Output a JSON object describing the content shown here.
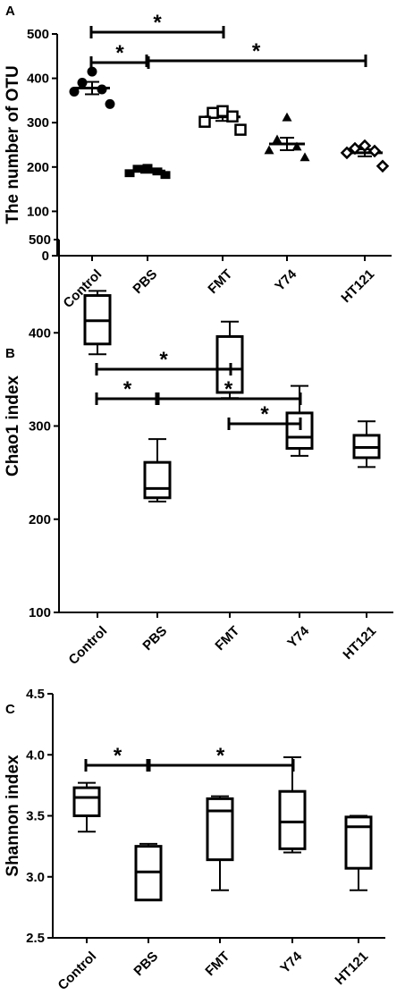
{
  "chart_data": [
    {
      "panel": "A",
      "type": "scatter",
      "ylabel": "The number of OTU",
      "xlabel": "",
      "categories": [
        "Control",
        "PBS",
        "FMT",
        "Y74",
        "HT121"
      ],
      "ylim": [
        0,
        500
      ],
      "yticks": [
        0,
        100,
        200,
        300,
        400,
        500
      ],
      "series": [
        {
          "markers": "filled-circle",
          "values": [
            415,
            390,
            375,
            370,
            342
          ],
          "mean": 378,
          "sem": 14
        },
        {
          "markers": "filled-square",
          "values": [
            198,
            196,
            190,
            186,
            182
          ],
          "mean": 191,
          "sem": 4
        },
        {
          "markers": "open-square",
          "values": [
            326,
            322,
            314,
            302,
            284
          ],
          "mean": 313,
          "sem": 9
        },
        {
          "markers": "filled-triangle",
          "values": [
            312,
            262,
            246,
            238,
            222
          ],
          "mean": 252,
          "sem": 14
        },
        {
          "markers": "open-diamond",
          "values": [
            248,
            242,
            236,
            232,
            202
          ],
          "mean": 232,
          "sem": 8
        }
      ],
      "significance": [
        {
          "from": "Control",
          "to": "FMT",
          "label": "*"
        },
        {
          "from": "Control",
          "to": "PBS",
          "label": "*"
        },
        {
          "from": "PBS",
          "to": "HT121",
          "label": "*"
        }
      ]
    },
    {
      "panel": "B",
      "type": "box",
      "ylabel": "Chao1 index",
      "xlabel": "",
      "categories": [
        "Control",
        "PBS",
        "FMT",
        "Y74",
        "HT121"
      ],
      "ylim": [
        100,
        500
      ],
      "yticks": [
        100,
        200,
        300,
        400,
        500
      ],
      "boxes": [
        {
          "min": 377,
          "q1": 388,
          "median": 413,
          "q3": 440,
          "max": 445
        },
        {
          "min": 219,
          "q1": 223,
          "median": 233,
          "q3": 261,
          "max": 286
        },
        {
          "min": 330,
          "q1": 336,
          "median": 361,
          "q3": 396,
          "max": 412
        },
        {
          "min": 268,
          "q1": 276,
          "median": 288,
          "q3": 314,
          "max": 343
        },
        {
          "min": 256,
          "q1": 266,
          "median": 277,
          "q3": 290,
          "max": 305
        }
      ],
      "significance": [
        {
          "from": "Control",
          "to": "FMT",
          "label": "*"
        },
        {
          "from": "Control",
          "to": "PBS",
          "label": "*"
        },
        {
          "from": "PBS",
          "to": "Y74",
          "label": "*"
        },
        {
          "from": "FMT",
          "to": "Y74",
          "label": "*"
        }
      ]
    },
    {
      "panel": "C",
      "type": "box",
      "ylabel": "Shannon index",
      "xlabel": "",
      "categories": [
        "Control",
        "PBS",
        "FMT",
        "Y74",
        "HT121"
      ],
      "ylim": [
        2.5,
        4.5
      ],
      "yticks": [
        "2.5",
        "3.0",
        "3.5",
        "4.0",
        "4.5"
      ],
      "boxes": [
        {
          "min": 3.37,
          "q1": 3.5,
          "median": 3.65,
          "q3": 3.73,
          "max": 3.77
        },
        {
          "min": 2.81,
          "q1": 2.81,
          "median": 3.04,
          "q3": 3.25,
          "max": 3.27
        },
        {
          "min": 2.89,
          "q1": 3.14,
          "median": 3.54,
          "q3": 3.64,
          "max": 3.66
        },
        {
          "min": 3.2,
          "q1": 3.23,
          "median": 3.45,
          "q3": 3.7,
          "max": 3.98
        },
        {
          "min": 2.89,
          "q1": 3.07,
          "median": 3.41,
          "q3": 3.49,
          "max": 3.5
        }
      ],
      "significance": [
        {
          "from": "Control",
          "to": "PBS",
          "label": "*"
        },
        {
          "from": "PBS",
          "to": "Y74",
          "label": "*"
        }
      ]
    }
  ]
}
